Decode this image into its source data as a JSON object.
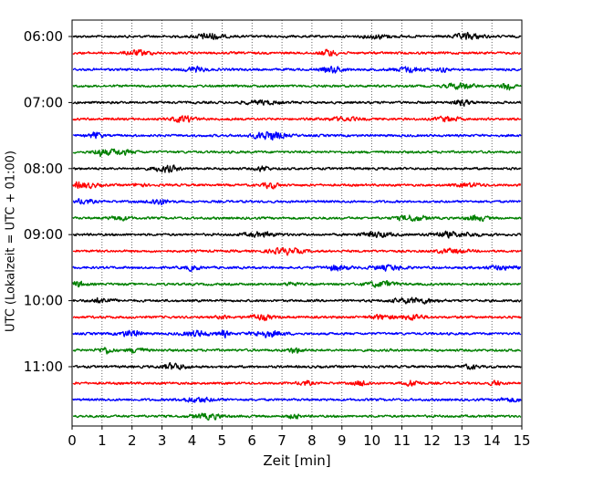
{
  "chart_data": {
    "type": "line",
    "title": "",
    "xlabel": "Zeit  [min]",
    "ylabel": "UTC (Lokalzeit = UTC + 01:00)",
    "xlim": [
      0,
      15
    ],
    "x_ticks": [
      0,
      1,
      2,
      3,
      4,
      5,
      6,
      7,
      8,
      9,
      10,
      11,
      12,
      13,
      14,
      15
    ],
    "y_tick_labels": [
      "06:00",
      "07:00",
      "08:00",
      "09:00",
      "10:00",
      "11:00"
    ],
    "rows_per_hour": 4,
    "minutes_per_row": 15,
    "start_hour": 6,
    "end_hour": 12,
    "grid": "vertical-dotted",
    "series_colors": [
      "#000000",
      "#ff0000",
      "#0000ff",
      "#008000"
    ]
  }
}
